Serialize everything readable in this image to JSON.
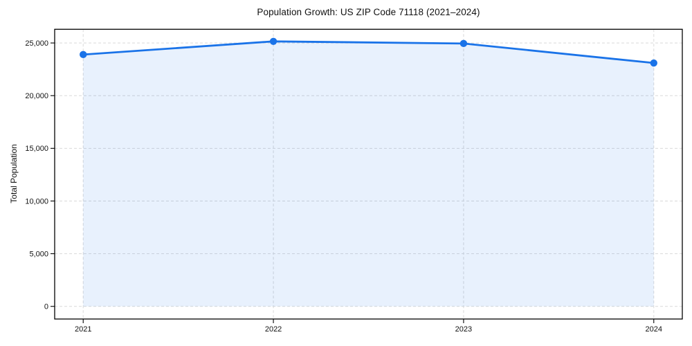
{
  "chart_data": {
    "type": "line",
    "title": "Population Growth: US ZIP Code 71118 (2021–2024)",
    "xlabel": "",
    "ylabel": "Total Population",
    "x": [
      2021,
      2022,
      2023,
      2024
    ],
    "x_tick_labels": [
      "2021",
      "2022",
      "2023",
      "2024"
    ],
    "series": [
      {
        "name": "Total Population",
        "values": [
          23900,
          25150,
          24950,
          23100
        ]
      }
    ],
    "y_ticks": [
      0,
      5000,
      10000,
      15000,
      20000,
      25000
    ],
    "y_tick_labels": [
      "0",
      "5,000",
      "10,000",
      "15,000",
      "20,000",
      "25,000"
    ],
    "xlim": [
      2020.85,
      2024.15
    ],
    "ylim": [
      -1200,
      26300
    ],
    "grid": true,
    "grid_style": "dashed",
    "legend": "none",
    "area_fill_under_line": true,
    "colors": {
      "line": "#1a73e8",
      "marker": "#1a73e8",
      "fill": "rgba(26,115,232,0.10)",
      "grid": "#d9d9d9",
      "axis": "#000000",
      "text": "#111111",
      "background": "#ffffff"
    }
  }
}
